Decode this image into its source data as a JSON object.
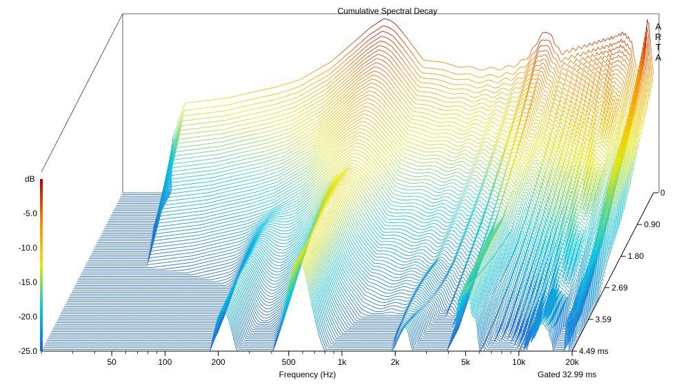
{
  "chart_data": {
    "type": "waterfall",
    "title": "Cumulative Spectral Decay",
    "xlabel": "Frequency (Hz)",
    "x_scale": "log",
    "xlim": [
      20,
      20000
    ],
    "x_ticks": [
      {
        "value": 50,
        "label": "50"
      },
      {
        "value": 100,
        "label": "100"
      },
      {
        "value": 200,
        "label": "200"
      },
      {
        "value": 500,
        "label": "500"
      },
      {
        "value": 1000,
        "label": "1k"
      },
      {
        "value": 2000,
        "label": "2k"
      },
      {
        "value": 5000,
        "label": "5k"
      },
      {
        "value": 10000,
        "label": "10k"
      },
      {
        "value": 20000,
        "label": "20k"
      }
    ],
    "zlabel": "dB",
    "zlim": [
      -25,
      0
    ],
    "z_ticks": [
      {
        "value": -5,
        "label": "-5.0"
      },
      {
        "value": -10,
        "label": "-10.0"
      },
      {
        "value": -15,
        "label": "-15.0"
      },
      {
        "value": -20,
        "label": "-20.0"
      },
      {
        "value": -25,
        "label": "-25.0"
      }
    ],
    "time_axis_unit": "ms",
    "time_ticks": [
      {
        "value": 0,
        "label": "0"
      },
      {
        "value": 0.9,
        "label": "0.90"
      },
      {
        "value": 1.8,
        "label": "1.80"
      },
      {
        "value": 2.69,
        "label": "2.69"
      },
      {
        "value": 3.59,
        "label": "3.59"
      },
      {
        "value": 4.49,
        "label": "4.49 ms"
      }
    ],
    "tmax": 4.49,
    "slice_count": 90,
    "colormap": [
      "#2166d0",
      "#00c8e6",
      "#e8e800",
      "#ff8a00",
      "#b00000"
    ],
    "spectrum_at_t0": {
      "freq": [
        20,
        30,
        45,
        60,
        80,
        100,
        150,
        200,
        300,
        400,
        500,
        600,
        650,
        700,
        800,
        1000,
        1300,
        1600,
        2000,
        2500,
        3000,
        3500,
        4000,
        4500,
        5000,
        5500,
        6000,
        7000,
        8000,
        10000,
        12000,
        13500,
        15000,
        16000,
        17000,
        18000,
        18500,
        19000,
        19500,
        20000
      ],
      "db": [
        -25,
        -25,
        -12,
        -11.6,
        -11.2,
        -10.6,
        -9.6,
        -8.6,
        -6,
        -3.2,
        -1,
        0.3,
        0,
        -0.6,
        -2.4,
        -5.6,
        -6.2,
        -6.6,
        -7,
        -7,
        -6.8,
        -6.2,
        -5,
        -2.6,
        -1.4,
        -3,
        -4.8,
        -4.2,
        -3.8,
        -3,
        -2.4,
        -1.8,
        -3,
        -7,
        -7.6,
        -4.5,
        0.5,
        -1.2,
        -5.5,
        -8
      ]
    },
    "resonances": [
      {
        "freq": 210,
        "peak_db_late": -19
      },
      {
        "freq": 560,
        "peak_db_late": -12
      },
      {
        "freq": 2200,
        "peak_db_late": -22
      },
      {
        "freq": 5000,
        "peak_db_late": -16
      },
      {
        "freq": 13500,
        "peak_db_late": -21
      },
      {
        "freq": 18500,
        "peak_db_late": -21
      }
    ],
    "gating_label": "Gated 32.99 ms",
    "watermark": "ARTA"
  }
}
